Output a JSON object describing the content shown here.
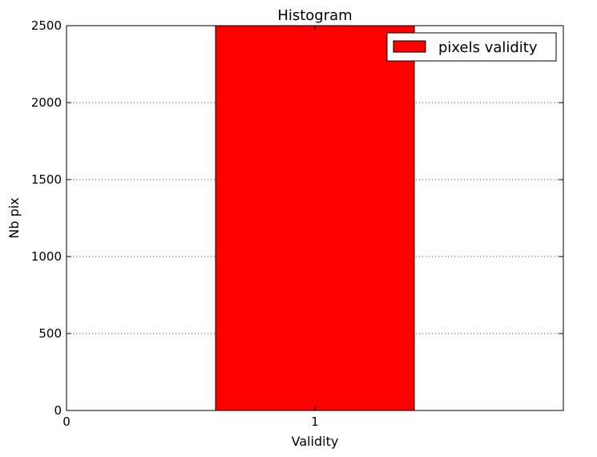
{
  "chart_data": {
    "type": "bar",
    "title": "Histogram",
    "xlabel": "Validity",
    "ylabel": "Nb pix",
    "x_ticks": [
      0,
      1
    ],
    "y_ticks": [
      0,
      500,
      1000,
      1500,
      2000,
      2500
    ],
    "xlim": [
      0,
      2
    ],
    "ylim": [
      0,
      2500
    ],
    "grid": "y-dotted",
    "legend_position": "top-right",
    "bars": [
      {
        "x_start": 0.0,
        "x_end": 0.4,
        "value": 0
      },
      {
        "x_start": 0.6,
        "x_end": 1.4,
        "value": 2500
      }
    ],
    "series": [
      {
        "name": "pixels validity",
        "color": "#ff0000"
      }
    ]
  }
}
